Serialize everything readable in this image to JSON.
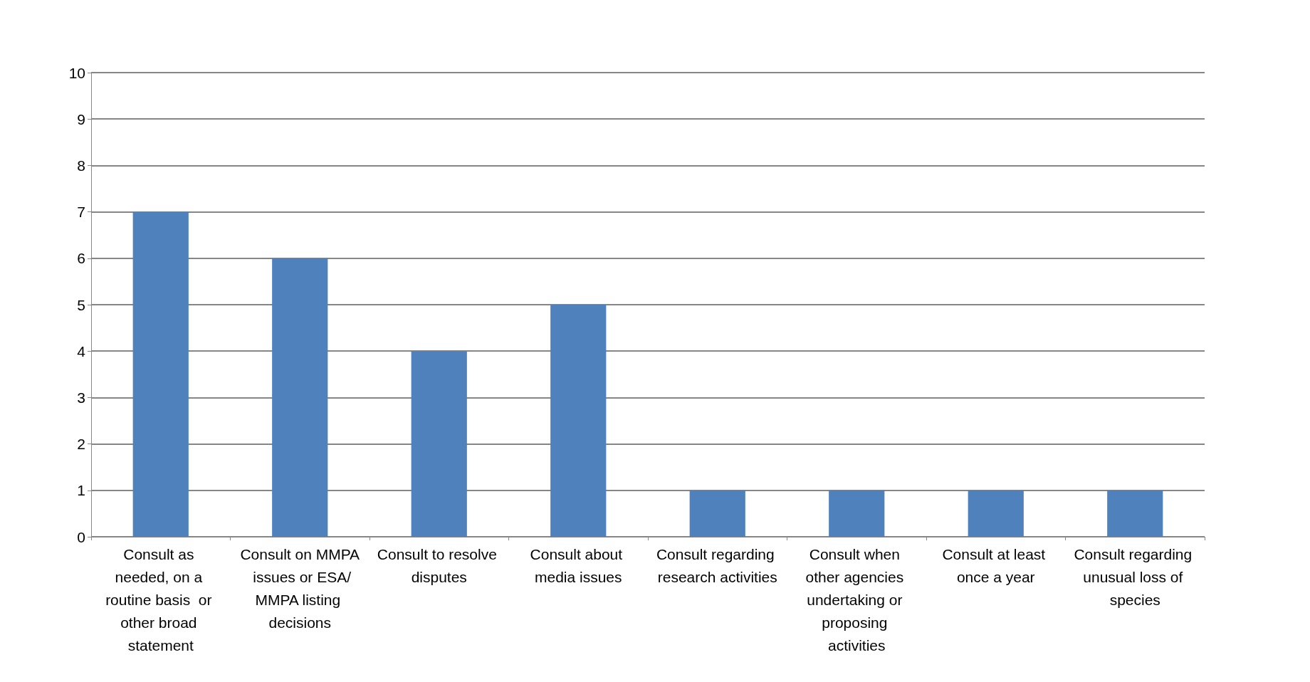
{
  "chart_data": {
    "type": "bar",
    "categories": [
      "Consult as needed, on a routine basis  or other broad statement",
      "Consult on MMPA issues or ESA/MMPA listing decisions",
      "Consult to resolve disputes",
      "Consult about media issues",
      "Consult regarding research activities",
      "Consult when other agencies undertaking or proposing activities",
      "Consult at least once a year",
      "Consult regarding unusual loss of species"
    ],
    "values": [
      7,
      6,
      4,
      5,
      1,
      1,
      1,
      1
    ],
    "color": "#4f81bd",
    "ylim": [
      0,
      10
    ],
    "yticks": [
      0,
      1,
      2,
      3,
      4,
      5,
      6,
      7,
      8,
      9,
      10
    ],
    "grid": true
  }
}
